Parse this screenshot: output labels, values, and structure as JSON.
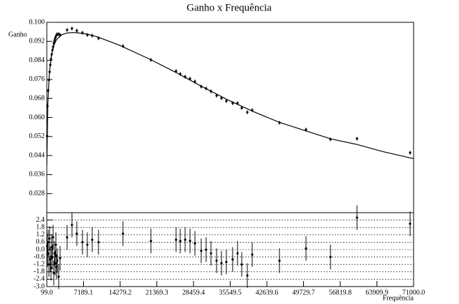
{
  "chart_data": [
    {
      "type": "scatter",
      "title": "Ganho x Frequência",
      "ylabel": "Ganho",
      "color": "#000000",
      "x": [
        150,
        234,
        369,
        504,
        639,
        774,
        909,
        1044,
        1179,
        1314,
        1450,
        1585,
        1720,
        1855,
        1990,
        2125,
        2395,
        2665,
        4015,
        4960,
        5900,
        6987,
        7930,
        8877,
        10093,
        14820,
        20220,
        25084,
        25895,
        26840,
        27785,
        28730,
        29945,
        30890,
        31836,
        32917,
        33862,
        34807,
        36023,
        36968,
        37779,
        38859,
        39804,
        45072,
        50203,
        54930,
        60062,
        70325
      ],
      "values": [
        0.0522,
        0.0648,
        0.0713,
        0.0757,
        0.0792,
        0.0821,
        0.0845,
        0.0865,
        0.0883,
        0.0897,
        0.0912,
        0.0924,
        0.0933,
        0.0941,
        0.0947,
        0.095,
        0.095,
        0.0947,
        0.0968,
        0.0974,
        0.0965,
        0.0956,
        0.0947,
        0.0944,
        0.0933,
        0.09,
        0.0842,
        0.0795,
        0.0783,
        0.0771,
        0.0763,
        0.0751,
        0.073,
        0.0722,
        0.071,
        0.0692,
        0.0681,
        0.0669,
        0.066,
        0.066,
        0.064,
        0.0622,
        0.0631,
        0.0578,
        0.0549,
        0.0508,
        0.0511,
        0.0452
      ],
      "yerr": 0.0008,
      "fit": {
        "x": [
          99,
          300,
          600,
          1000,
          1500,
          2000,
          3000,
          4000,
          5000,
          6000,
          8000,
          10000,
          14000,
          20000,
          25000,
          30000,
          35000,
          40000,
          45000,
          50000,
          55000,
          60000,
          65000,
          71000
        ],
        "values": [
          0.04,
          0.066,
          0.079,
          0.086,
          0.0905,
          0.0928,
          0.0948,
          0.0955,
          0.0957,
          0.0956,
          0.095,
          0.0938,
          0.0905,
          0.0845,
          0.079,
          0.0731,
          0.0675,
          0.0625,
          0.058,
          0.0545,
          0.051,
          0.0487,
          0.0457,
          0.0427
        ]
      },
      "xlim": [
        99,
        71000
      ],
      "ylim": [
        0.02,
        0.1
      ],
      "yticks": [
        0.028,
        0.036,
        0.044,
        0.052,
        {
          "value": 0.06,
          "label": "0.060"
        },
        0.068,
        0.076,
        0.084,
        0.092,
        {
          "value": 0.1,
          "label": "0.100"
        }
      ]
    },
    {
      "type": "scatter",
      "xlabel": "Frequência",
      "color": "#000000",
      "grid": true,
      "x": [
        150,
        234,
        369,
        504,
        639,
        774,
        909,
        1044,
        1179,
        1314,
        1450,
        1585,
        1720,
        1855,
        1990,
        2125,
        2395,
        2665,
        4015,
        4960,
        5900,
        6987,
        7930,
        8877,
        10093,
        14820,
        20220,
        25084,
        25895,
        26840,
        27785,
        28730,
        29945,
        30890,
        31836,
        32917,
        33862,
        34807,
        36023,
        36968,
        37779,
        38859,
        39804,
        45072,
        50203,
        54930,
        60062,
        70325
      ],
      "values": [
        0.3,
        -0.4,
        0.6,
        -1.2,
        0.9,
        -0.8,
        -1.5,
        0.2,
        -0.6,
        1.0,
        -1.9,
        -0.3,
        -1.1,
        0.4,
        -1.4,
        -0.9,
        -2.2,
        -0.7,
        1.0,
        2.0,
        1.3,
        0.6,
        0.4,
        0.8,
        0.6,
        1.3,
        0.7,
        0.8,
        0.7,
        0.8,
        0.7,
        0.5,
        -0.1,
        0.0,
        -0.3,
        -0.9,
        -1.1,
        -1.0,
        -0.8,
        -0.3,
        -1.2,
        -2.1,
        -0.4,
        -0.9,
        0.1,
        -0.6,
        2.6,
        2.1
      ],
      "yerr": 1,
      "xlim": [
        99,
        71000
      ],
      "ylim": [
        -3,
        3
      ],
      "xticks": [
        {
          "value": 99,
          "label": "99.0"
        },
        7189.1,
        14279.2,
        21369.3,
        28459.4,
        35549.5,
        42639.6,
        49729.7,
        56819.8,
        63909.9,
        {
          "value": 71000,
          "label": "71000.0"
        }
      ],
      "yticks": [
        {
          "value": -3,
          "label": "-3.0"
        },
        -2.4,
        -1.8,
        -1.2,
        -0.6,
        {
          "value": 0,
          "label": "0.0"
        },
        0.6,
        1.2,
        1.8,
        2.4
      ]
    }
  ]
}
